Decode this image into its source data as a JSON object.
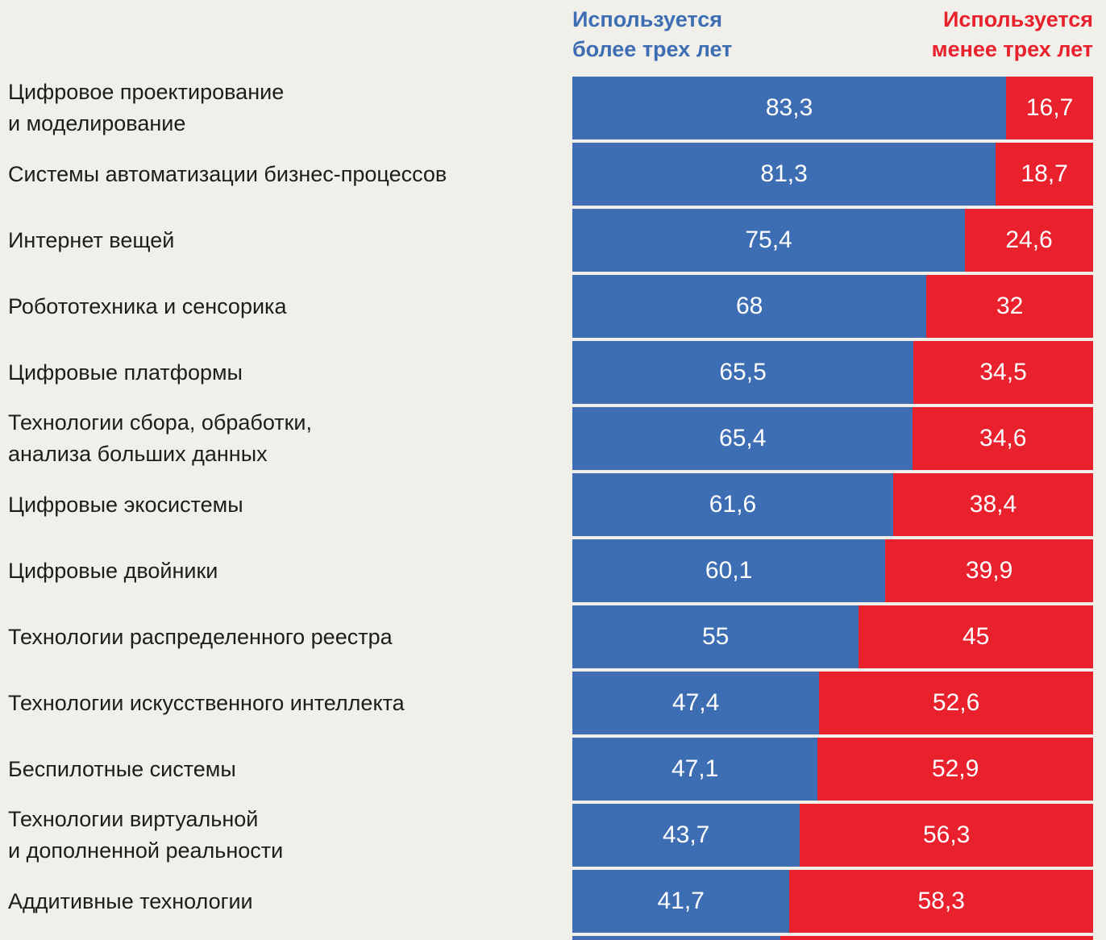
{
  "legend": {
    "blue": {
      "line1": "Используется",
      "line2": "более трех лет"
    },
    "red": {
      "line1": "Используется",
      "line2": "менее трех лет"
    }
  },
  "colors": {
    "blue": "#3d6eb4",
    "red": "#e8212d",
    "background": "#f0efea",
    "label_text": "#1d1d1b"
  },
  "rows": [
    {
      "label_lines": [
        "Цифровое проектирование",
        "и моделирование"
      ],
      "blue_value": 83.3,
      "blue_label": "83,3",
      "red_value": 16.7,
      "red_label": "16,7"
    },
    {
      "label_lines": [
        "Системы автоматизации бизнес-процессов"
      ],
      "blue_value": 81.3,
      "blue_label": "81,3",
      "red_value": 18.7,
      "red_label": "18,7"
    },
    {
      "label_lines": [
        "Интернет вещей"
      ],
      "blue_value": 75.4,
      "blue_label": "75,4",
      "red_value": 24.6,
      "red_label": "24,6"
    },
    {
      "label_lines": [
        "Робототехника и сенсорика"
      ],
      "blue_value": 68,
      "blue_label": "68",
      "red_value": 32,
      "red_label": "32"
    },
    {
      "label_lines": [
        "Цифровые платформы"
      ],
      "blue_value": 65.5,
      "blue_label": "65,5",
      "red_value": 34.5,
      "red_label": "34,5"
    },
    {
      "label_lines": [
        "Технологии сбора, обработки,",
        "анализа больших данных"
      ],
      "blue_value": 65.4,
      "blue_label": "65,4",
      "red_value": 34.6,
      "red_label": "34,6"
    },
    {
      "label_lines": [
        "Цифровые экосистемы"
      ],
      "blue_value": 61.6,
      "blue_label": "61,6",
      "red_value": 38.4,
      "red_label": "38,4"
    },
    {
      "label_lines": [
        "Цифровые двойники"
      ],
      "blue_value": 60.1,
      "blue_label": "60,1",
      "red_value": 39.9,
      "red_label": "39,9"
    },
    {
      "label_lines": [
        "Технологии распределенного реестра"
      ],
      "blue_value": 55,
      "blue_label": "55",
      "red_value": 45,
      "red_label": "45"
    },
    {
      "label_lines": [
        "Технологии искусственного интеллекта"
      ],
      "blue_value": 47.4,
      "blue_label": "47,4",
      "red_value": 52.6,
      "red_label": "52,6"
    },
    {
      "label_lines": [
        "Беспилотные системы"
      ],
      "blue_value": 47.1,
      "blue_label": "47,1",
      "red_value": 52.9,
      "red_label": "52,9"
    },
    {
      "label_lines": [
        "Технологии виртуальной",
        "и дополненной реальности"
      ],
      "blue_value": 43.7,
      "blue_label": "43,7",
      "red_value": 56.3,
      "red_label": "56,3"
    },
    {
      "label_lines": [
        "Аддитивные технологии"
      ],
      "blue_value": 41.7,
      "blue_label": "41,7",
      "red_value": 58.3,
      "red_label": "58,3"
    }
  ],
  "partial_row": {
    "blue_percent": 40
  },
  "chart_data": {
    "type": "bar",
    "orientation": "horizontal",
    "stacked": true,
    "units": "percent",
    "xlim": [
      0,
      100
    ],
    "grid": false,
    "legend_position": "top",
    "categories": [
      "Цифровое проектирование и моделирование",
      "Системы автоматизации бизнес-процессов",
      "Интернет вещей",
      "Робототехника и сенсорика",
      "Цифровые платформы",
      "Технологии сбора, обработки, анализа больших данных",
      "Цифровые экосистемы",
      "Цифровые двойники",
      "Технологии распределенного реестра",
      "Технологии искусственного интеллекта",
      "Беспилотные системы",
      "Технологии виртуальной и дополненной реальности",
      "Аддитивные технологии"
    ],
    "series": [
      {
        "name": "Используется более трех лет",
        "color": "#3d6eb4",
        "values": [
          83.3,
          81.3,
          75.4,
          68,
          65.5,
          65.4,
          61.6,
          60.1,
          55,
          47.4,
          47.1,
          43.7,
          41.7
        ]
      },
      {
        "name": "Используется менее трех лет",
        "color": "#e8212d",
        "values": [
          16.7,
          18.7,
          24.6,
          32,
          34.5,
          34.6,
          38.4,
          39.9,
          45,
          52.6,
          52.9,
          56.3,
          58.3
        ]
      }
    ]
  }
}
